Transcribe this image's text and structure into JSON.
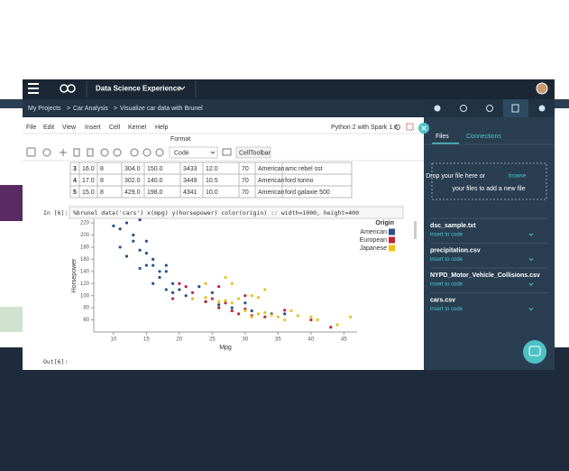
{
  "nav": {
    "product": "Data Science Experience"
  },
  "breadcrumbs": [
    "My Projects",
    "Car Analysis",
    "Visualize car data with Brunel"
  ],
  "breadcrumb_separator": ">",
  "menu": [
    "File",
    "Edit",
    "View",
    "Insert",
    "Cell",
    "Kernel",
    "Help"
  ],
  "kernel": "Python 2 with Spark 1.6",
  "toolbar": {
    "format_label": "Format",
    "cell_type": "Code",
    "cell_toolbar": "CellToolbar"
  },
  "table": {
    "rows": [
      [
        "3",
        "16.0",
        "8",
        "304.0",
        "150.0",
        "3433",
        "12.0",
        "70",
        "American",
        "amc rebel sst"
      ],
      [
        "4",
        "17.0",
        "8",
        "302.0",
        "140.0",
        "3449",
        "10.5",
        "70",
        "American",
        "ford torino"
      ],
      [
        "5",
        "15.0",
        "8",
        "429.0",
        "198.0",
        "4341",
        "10.0",
        "70",
        "American",
        "ford galaxie 500"
      ]
    ]
  },
  "cell": {
    "prompt_in": "In [6]:",
    "code": "%brunel data('cars') x(mpg) y(horsepower) color(origin) :: width=1000, height=400",
    "prompt_out": "Out[6]:"
  },
  "chart_data": {
    "type": "scatter",
    "x_label": "Mpg",
    "y_label": "Horsepower",
    "legend_title": "Origin",
    "legend": "right",
    "xlim": [
      7,
      47
    ],
    "xticks": [
      10,
      15,
      20,
      25,
      30,
      35,
      40,
      45
    ],
    "ylim": [
      40,
      226
    ],
    "yticks": [
      60,
      80,
      100,
      120,
      140,
      160,
      180,
      200,
      220
    ],
    "series": [
      {
        "name": "American",
        "color": "#24528c",
        "x": [
          10,
          11,
          12,
          13,
          14,
          13,
          14,
          15,
          15,
          16,
          16,
          17,
          17,
          18,
          18,
          19,
          19,
          20,
          21,
          22,
          24,
          26,
          28,
          30,
          31,
          34,
          11,
          12,
          15,
          18,
          14,
          16,
          25,
          23,
          36
        ],
        "values": [
          215,
          210,
          220,
          200,
          225,
          190,
          175,
          170,
          150,
          160,
          150,
          140,
          130,
          150,
          140,
          120,
          105,
          110,
          100,
          95,
          90,
          85,
          80,
          88,
          75,
          70,
          180,
          165,
          190,
          110,
          145,
          120,
          105,
          115,
          70
        ]
      },
      {
        "name": "European",
        "color": "#c32336",
        "x": [
          20,
          22,
          24,
          25,
          26,
          27,
          28,
          29,
          30,
          31,
          33,
          36,
          40,
          43,
          21,
          26,
          30,
          19
        ],
        "values": [
          120,
          105,
          90,
          95,
          80,
          88,
          75,
          70,
          78,
          67,
          65,
          76,
          60,
          48,
          115,
          115,
          100,
          95
        ]
      },
      {
        "name": "Japanese",
        "color": "#e8c317",
        "x": [
          22,
          24,
          26,
          27,
          28,
          29,
          30,
          31,
          32,
          33,
          34,
          35,
          36,
          37,
          38,
          40,
          41,
          44,
          46,
          31,
          33,
          24,
          27,
          32,
          28
        ],
        "values": [
          95,
          97,
          90,
          92,
          88,
          95,
          75,
          65,
          70,
          72,
          68,
          65,
          60,
          75,
          67,
          65,
          60,
          52,
          65,
          100,
          110,
          120,
          130,
          97,
          120
        ]
      }
    ]
  },
  "side_panel": {
    "tabs": [
      "Files",
      "Connections"
    ],
    "drop_text": "Drop your file here or",
    "drop_link": "browse",
    "drop_text2": "your files to add a new file",
    "files": [
      {
        "name": "dsc_sample.txt",
        "action": "insert to code"
      },
      {
        "name": "precipitation.csv",
        "action": "insert to code"
      },
      {
        "name": "NYPD_Motor_Vehicle_Collisions.csv",
        "action": "insert to code"
      },
      {
        "name": "cars.csv",
        "action": "insert to code"
      }
    ]
  }
}
